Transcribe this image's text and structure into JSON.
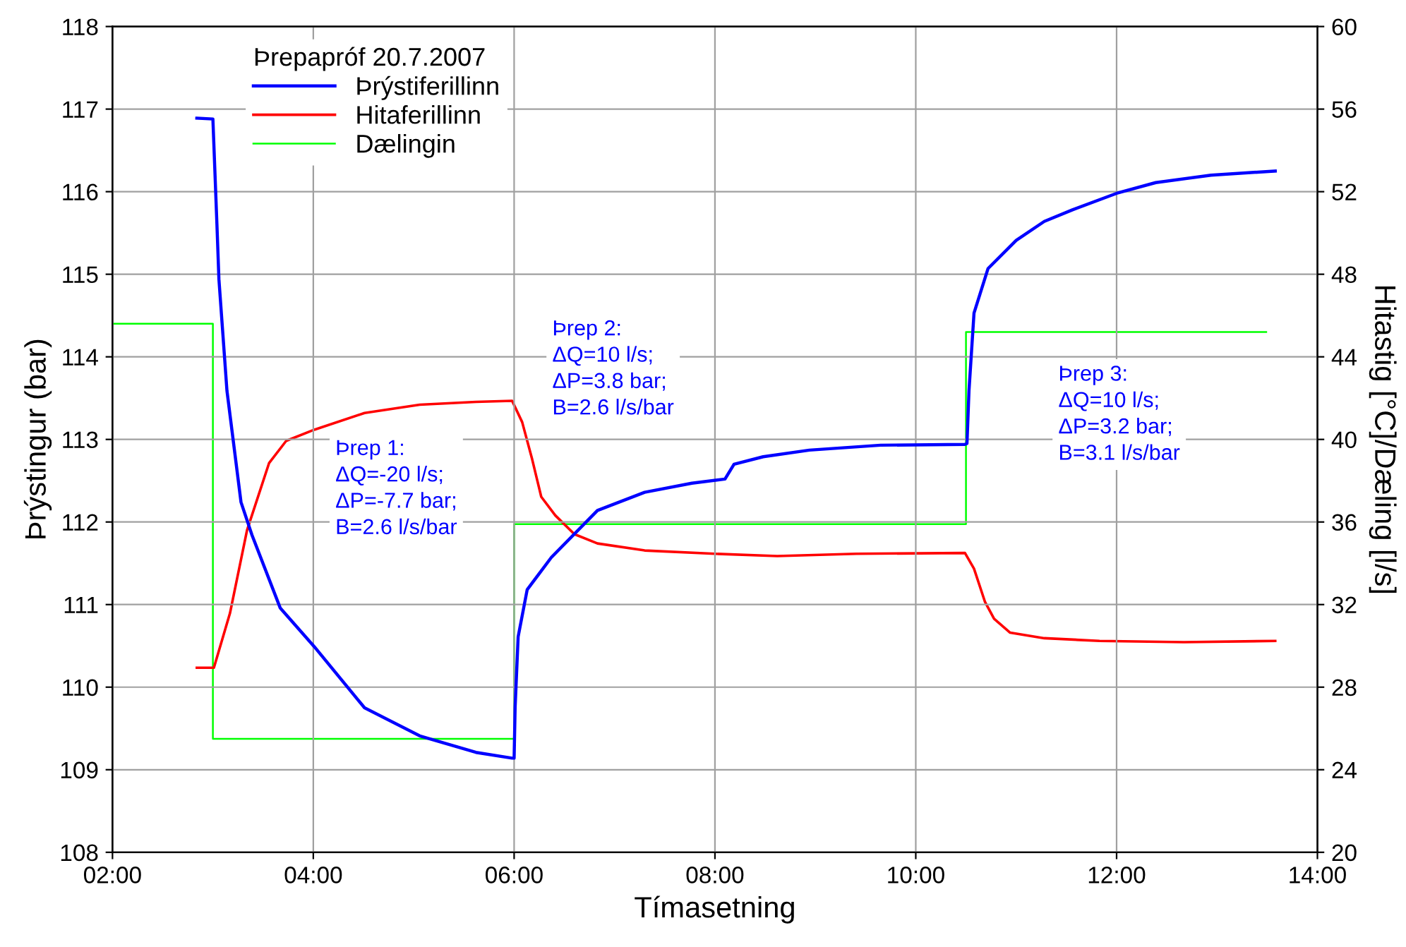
{
  "chart_data": {
    "type": "line",
    "xlabel": "Tímasetning",
    "ylabel": "Þrýstingur (bar)",
    "y2label": "Hitastig [°C]/Dæling [l/s]",
    "legend_title": "Þrepapróf 20.7.2007",
    "legend": "top left",
    "grid": true,
    "marker": "none",
    "line_style": "solid",
    "xlim": [
      2,
      14
    ],
    "xticks": [
      {
        "value": 2,
        "label": "02:00"
      },
      {
        "value": 4,
        "label": "04:00"
      },
      {
        "value": 6,
        "label": "06:00"
      },
      {
        "value": 8,
        "label": "08:00"
      },
      {
        "value": 10,
        "label": "10:00"
      },
      {
        "value": 12,
        "label": "12:00"
      },
      {
        "value": 14,
        "label": "14:00"
      }
    ],
    "ylim": [
      108,
      118
    ],
    "yticks": [
      108,
      109,
      110,
      111,
      112,
      113,
      114,
      115,
      116,
      117,
      118
    ],
    "y2lim": [
      20,
      60
    ],
    "y2ticks": [
      20,
      24,
      28,
      32,
      36,
      40,
      44,
      48,
      52,
      56,
      60
    ],
    "series": [
      {
        "name": "Þrýstiferillinn",
        "color": "#0000ff",
        "x": [
          2.84,
          3.0,
          3.04,
          3.06,
          3.14,
          3.28,
          3.39,
          3.67,
          4.01,
          4.51,
          5.06,
          5.62,
          5.98,
          6.0,
          6.01,
          6.04,
          6.13,
          6.37,
          6.83,
          7.3,
          7.77,
          8.1,
          8.19,
          8.48,
          8.94,
          9.65,
          10.49,
          10.51,
          10.53,
          10.58,
          10.72,
          11.0,
          11.28,
          11.56,
          12.0,
          12.39,
          12.94,
          13.58
        ],
        "values": [
          116.89,
          116.88,
          115.61,
          114.94,
          113.59,
          112.24,
          111.84,
          110.96,
          110.49,
          109.75,
          109.41,
          109.21,
          109.14,
          109.14,
          109.76,
          110.61,
          111.18,
          111.57,
          112.14,
          112.36,
          112.47,
          112.52,
          112.7,
          112.79,
          112.87,
          112.93,
          112.94,
          112.95,
          113.59,
          114.53,
          115.07,
          115.41,
          115.64,
          115.78,
          115.98,
          116.11,
          116.2,
          116.25
        ]
      },
      {
        "name": "Hitaferillinn",
        "color": "#ff0000",
        "axis": "y2",
        "x": [
          2.84,
          3.01,
          3.17,
          3.34,
          3.56,
          3.73,
          4.01,
          4.51,
          5.06,
          5.62,
          5.98,
          6.08,
          6.18,
          6.27,
          6.41,
          6.6,
          6.83,
          7.3,
          8.0,
          8.62,
          9.41,
          10.49,
          10.58,
          10.69,
          10.78,
          10.94,
          11.28,
          11.83,
          12.67,
          13.58
        ],
        "values": [
          28.94,
          28.94,
          31.58,
          35.6,
          38.86,
          39.93,
          40.47,
          41.28,
          41.68,
          41.82,
          41.87,
          40.84,
          39.03,
          37.22,
          36.32,
          35.41,
          34.96,
          34.62,
          34.46,
          34.35,
          34.46,
          34.5,
          33.74,
          32.12,
          31.31,
          30.64,
          30.37,
          30.24,
          30.18,
          30.24
        ]
      },
      {
        "name": "Dælingin",
        "color": "#00ff00",
        "axis": "y2",
        "x": [
          2.0,
          3.0,
          3.0,
          6.0,
          6.0,
          10.5,
          10.5,
          13.49
        ],
        "values": [
          45.6,
          45.6,
          25.5,
          25.5,
          35.9,
          35.9,
          45.2,
          45.2
        ]
      }
    ],
    "annotations": [
      "Þrep 1:\nΔQ=-20 l/s;\nΔP=-7.7 bar;\nB=2.6 l/s/bar",
      "Þrep 2:\nΔQ=10 l/s;\nΔP=3.8 bar;\nB=2.6 l/s/bar",
      "Þrep 3:\nΔQ=10 l/s;\nΔP=3.2 bar;\nB=3.1 l/s/bar"
    ]
  }
}
